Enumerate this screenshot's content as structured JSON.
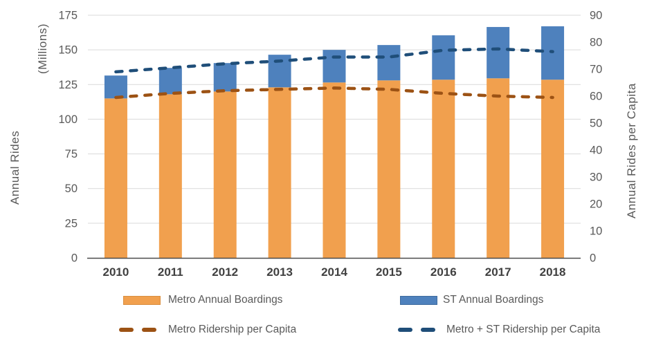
{
  "chart_data": {
    "type": "bar",
    "subtype": "stacked-bar-with-dashed-lines",
    "title": "",
    "categories": [
      "2010",
      "2011",
      "2012",
      "2013",
      "2014",
      "2015",
      "2016",
      "2017",
      "2018"
    ],
    "stacked": true,
    "grid": true,
    "legend_position": "bottom",
    "series": [
      {
        "name": "Metro Annual Boardings",
        "type": "bar",
        "axis": "left",
        "color": "#F1A04E",
        "border_color": "#D98E3F",
        "values": [
          115,
          118,
          120,
          123,
          126.5,
          128,
          128.5,
          129.5,
          128.5
        ]
      },
      {
        "name": "ST Annual Boardings",
        "type": "bar",
        "axis": "left",
        "color": "#4E81BD",
        "border_color": "#3E6B9E",
        "values": [
          16.5,
          19,
          20.5,
          23.5,
          23.5,
          25.5,
          32,
          37,
          38.5
        ]
      },
      {
        "name": "Metro Ridership per Capita",
        "type": "dashed-line",
        "axis": "right",
        "color": "#9C5214",
        "values": [
          59.5,
          61,
          62,
          62.5,
          63,
          62.5,
          61,
          60,
          59.5
        ]
      },
      {
        "name": "Metro + ST Ridership per Capita",
        "type": "dashed-line",
        "axis": "right",
        "color": "#1F4E79",
        "values": [
          69,
          70.5,
          72,
          73,
          74.5,
          74.5,
          77,
          77.5,
          76.5
        ]
      }
    ],
    "left_axis": {
      "title": "Annual Rides",
      "subtitle": "(Millions)",
      "min": 0,
      "max": 175,
      "step": 25,
      "tick_labels": [
        "0",
        "25",
        "50",
        "75",
        "100",
        "125",
        "150",
        "175"
      ]
    },
    "right_axis": {
      "title": "Annual Rides per Capita",
      "min": 0,
      "max": 90,
      "step": 10,
      "tick_labels": [
        "0",
        "10",
        "20",
        "30",
        "40",
        "50",
        "60",
        "70",
        "80",
        "90"
      ]
    },
    "style": {
      "gridline_color": "#D9D9D9",
      "axis_line_color": "#4A4A4A",
      "tick_label_color": "#595959",
      "year_label_color": "#404040",
      "background": "#FFFFFF"
    }
  }
}
